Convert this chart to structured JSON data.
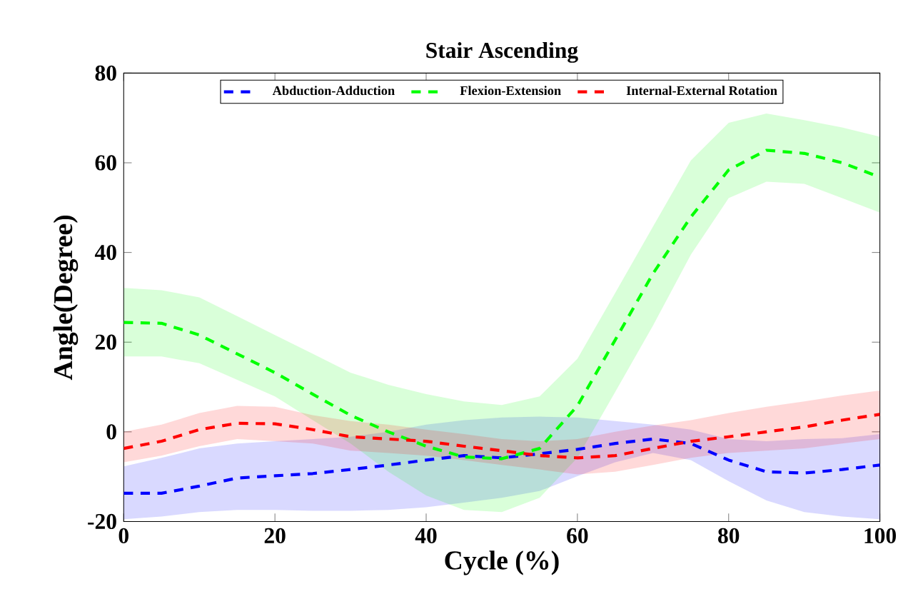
{
  "chart_data": {
    "type": "line",
    "title": "Stair Ascending",
    "xlabel": "Cycle (%)",
    "ylabel": "Angle(Degree)",
    "x": [
      0,
      5,
      10,
      15,
      20,
      25,
      30,
      35,
      40,
      45,
      50,
      55,
      60,
      65,
      70,
      75,
      80,
      85,
      90,
      95,
      100
    ],
    "xlim": [
      0,
      100
    ],
    "xticks": [
      0,
      20,
      40,
      60,
      80,
      100
    ],
    "ylim": [
      -20,
      80
    ],
    "yticks": [
      -20,
      0,
      20,
      40,
      60,
      80
    ],
    "grid": false,
    "legend": "top",
    "line_style": "dashed",
    "marker": "none",
    "series": [
      {
        "name": "Abduction-Adduction",
        "color": "#0000ff",
        "values": [
          -13.7,
          -13.7,
          -12.1,
          -10.3,
          -9.8,
          -9.3,
          -8.4,
          -7.4,
          -6.3,
          -5.3,
          -5.8,
          -4.9,
          -3.9,
          -2.6,
          -1.6,
          -2.6,
          -6.3,
          -8.9,
          -9.2,
          -8.4,
          -7.4
        ],
        "upper": [
          -7.7,
          -5.8,
          -3.7,
          -2.6,
          -2.1,
          -1.6,
          -1.1,
          0,
          1.6,
          2.6,
          3.2,
          3.4,
          3.2,
          2.4,
          1.6,
          0.5,
          -1.6,
          -2.1,
          -1.6,
          -1.4,
          -0.5
        ],
        "lower": [
          -19.5,
          -18.9,
          -17.9,
          -17.4,
          -17.4,
          -17.6,
          -17.6,
          -17.4,
          -16.8,
          -15.8,
          -14.7,
          -13.2,
          -9.9,
          -6.8,
          -4.7,
          -6.3,
          -11,
          -15.3,
          -17.9,
          -18.9,
          -19.5
        ]
      },
      {
        "name": "Flexion-Extension",
        "color": "#00ff00",
        "values": [
          24.4,
          24.2,
          21.6,
          17.4,
          13.2,
          8.4,
          3.7,
          0,
          -3.2,
          -5.6,
          -6,
          -3.7,
          5.8,
          20.5,
          35.3,
          47.9,
          58.4,
          62.8,
          62.1,
          60,
          56.8
        ],
        "upper": [
          32.1,
          31.6,
          30,
          25.8,
          21.6,
          17.4,
          13.2,
          10.5,
          8.4,
          6.8,
          6,
          7.9,
          16.3,
          31,
          45.8,
          60.5,
          68.9,
          71,
          69.5,
          67.9,
          65.8
        ],
        "lower": [
          16.8,
          16.8,
          15.3,
          11.6,
          7.9,
          2.6,
          -2.6,
          -8.9,
          -14.2,
          -17.4,
          -17.9,
          -14.7,
          -5.8,
          8.9,
          23.7,
          39.5,
          52.1,
          55.8,
          55.3,
          52.1,
          48.9
        ]
      },
      {
        "name": "Internal-External Rotation",
        "color": "#ff0000",
        "values": [
          -3.7,
          -2.1,
          0.5,
          1.9,
          1.8,
          0.5,
          -1.1,
          -1.6,
          -2.1,
          -3.2,
          -4.2,
          -5.3,
          -5.8,
          -5.3,
          -3.7,
          -2.1,
          -1.1,
          0,
          1.1,
          2.6,
          3.9
        ],
        "upper": [
          0,
          1.6,
          4.2,
          5.8,
          5.6,
          3.7,
          2.4,
          1.6,
          0.5,
          -0.5,
          -1.6,
          -2.1,
          -1.6,
          0,
          1.4,
          2.6,
          4.2,
          5.6,
          6.8,
          8.1,
          9.2
        ],
        "lower": [
          -6.8,
          -5.3,
          -3.2,
          -1.6,
          -2.1,
          -2.6,
          -4.2,
          -4.7,
          -5.3,
          -6.3,
          -7.4,
          -8.4,
          -9.5,
          -8.9,
          -7.4,
          -5.8,
          -4.7,
          -4.2,
          -3.7,
          -2.6,
          -1.6
        ]
      }
    ]
  }
}
